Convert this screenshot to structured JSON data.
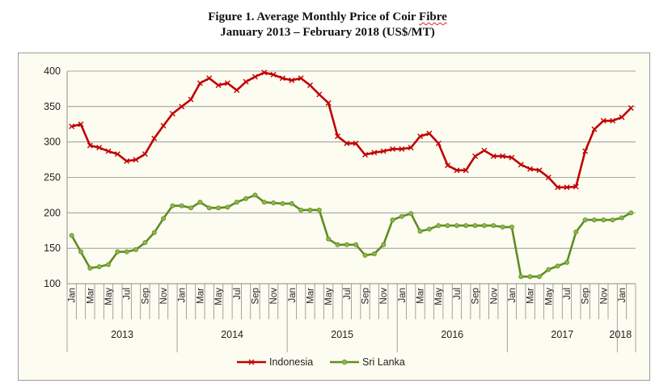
{
  "figure": {
    "title_prefix": "Figure 1. Average Monthly Price of Coir ",
    "title_word": "Fibre",
    "subtitle": "January 2013 – February 2018 (US$/MT)"
  },
  "chart_data": {
    "type": "line",
    "title": "Figure 1. Average Monthly Price of Coir Fibre",
    "subtitle": "January 2013 – February 2018 (US$/MT)",
    "ylim": [
      100,
      400
    ],
    "yticks": [
      100,
      150,
      200,
      250,
      300,
      350,
      400
    ],
    "grid": true,
    "legend_position": "bottom",
    "month_tick_labels": [
      "Jan",
      "Mar",
      "May",
      "Jul",
      "Sep",
      "Nov"
    ],
    "years": [
      "2013",
      "2014",
      "2015",
      "2016",
      "2017",
      "2018"
    ],
    "x": [
      "2013-01",
      "2013-02",
      "2013-03",
      "2013-04",
      "2013-05",
      "2013-06",
      "2013-07",
      "2013-08",
      "2013-09",
      "2013-10",
      "2013-11",
      "2013-12",
      "2014-01",
      "2014-02",
      "2014-03",
      "2014-04",
      "2014-05",
      "2014-06",
      "2014-07",
      "2014-08",
      "2014-09",
      "2014-10",
      "2014-11",
      "2014-12",
      "2015-01",
      "2015-02",
      "2015-03",
      "2015-04",
      "2015-05",
      "2015-06",
      "2015-07",
      "2015-08",
      "2015-09",
      "2015-10",
      "2015-11",
      "2015-12",
      "2016-01",
      "2016-02",
      "2016-03",
      "2016-04",
      "2016-05",
      "2016-06",
      "2016-07",
      "2016-08",
      "2016-09",
      "2016-10",
      "2016-11",
      "2016-12",
      "2017-01",
      "2017-02",
      "2017-03",
      "2017-04",
      "2017-05",
      "2017-06",
      "2017-07",
      "2017-08",
      "2017-09",
      "2017-10",
      "2017-11",
      "2017-12",
      "2018-01",
      "2018-02"
    ],
    "series": [
      {
        "name": "Indonesia",
        "color": "#c00000",
        "marker": "x",
        "values": [
          322,
          325,
          295,
          292,
          287,
          283,
          273,
          275,
          283,
          305,
          323,
          340,
          350,
          360,
          383,
          390,
          380,
          383,
          373,
          385,
          392,
          398,
          395,
          390,
          387,
          390,
          380,
          367,
          355,
          308,
          298,
          298,
          282,
          285,
          287,
          290,
          290,
          292,
          308,
          312,
          298,
          267,
          260,
          260,
          280,
          288,
          280,
          280,
          278,
          268,
          262,
          260,
          250,
          236,
          236,
          237,
          287,
          318,
          330,
          330,
          335,
          348
        ]
      },
      {
        "name": "Sri Lanka",
        "color": "#5f8c25",
        "marker": "circle",
        "values": [
          168,
          145,
          122,
          124,
          127,
          145,
          145,
          148,
          158,
          172,
          192,
          210,
          210,
          207,
          215,
          207,
          207,
          208,
          215,
          220,
          225,
          215,
          214,
          213,
          213,
          204,
          204,
          204,
          163,
          155,
          155,
          155,
          140,
          142,
          155,
          190,
          195,
          199,
          174,
          177,
          182,
          182,
          182,
          182,
          182,
          182,
          182,
          180,
          180,
          110,
          110,
          110,
          120,
          125,
          130,
          173,
          190,
          190,
          190,
          190,
          193,
          200
        ]
      }
    ]
  }
}
